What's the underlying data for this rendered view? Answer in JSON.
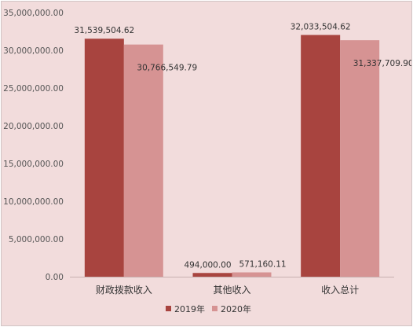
{
  "chart_data": {
    "type": "bar",
    "categories": [
      "财政拨款收入",
      "其他收入",
      "收入总计"
    ],
    "series": [
      {
        "name": "2019年",
        "values": [
          31539504.62,
          494000.0,
          32033504.62
        ],
        "labels": [
          "31,539,504.62",
          "494,000.00",
          "32,033,504.62"
        ]
      },
      {
        "name": "2020年",
        "values": [
          30766549.79,
          571160.11,
          31337709.9
        ],
        "labels": [
          "30,766,549.79",
          "571,160.11",
          "31,337,709.90"
        ]
      }
    ],
    "ylim": [
      0,
      35000000
    ],
    "yticks": [
      0,
      5000000,
      10000000,
      15000000,
      20000000,
      25000000,
      30000000,
      35000000
    ],
    "ytick_labels": [
      "0.00",
      "5,000,000.00",
      "10,000,000.00",
      "15,000,000.00",
      "20,000,000.00",
      "25,000,000.00",
      "30,000,000.00",
      "35,000,000.00"
    ],
    "title": "",
    "xlabel": "",
    "ylabel": "",
    "grid": false,
    "legend_position": "bottom",
    "colors": {
      "series": [
        "#a8443f",
        "#d69393"
      ],
      "background": "#f2dcdc",
      "axis": "#c8b0b0"
    }
  }
}
